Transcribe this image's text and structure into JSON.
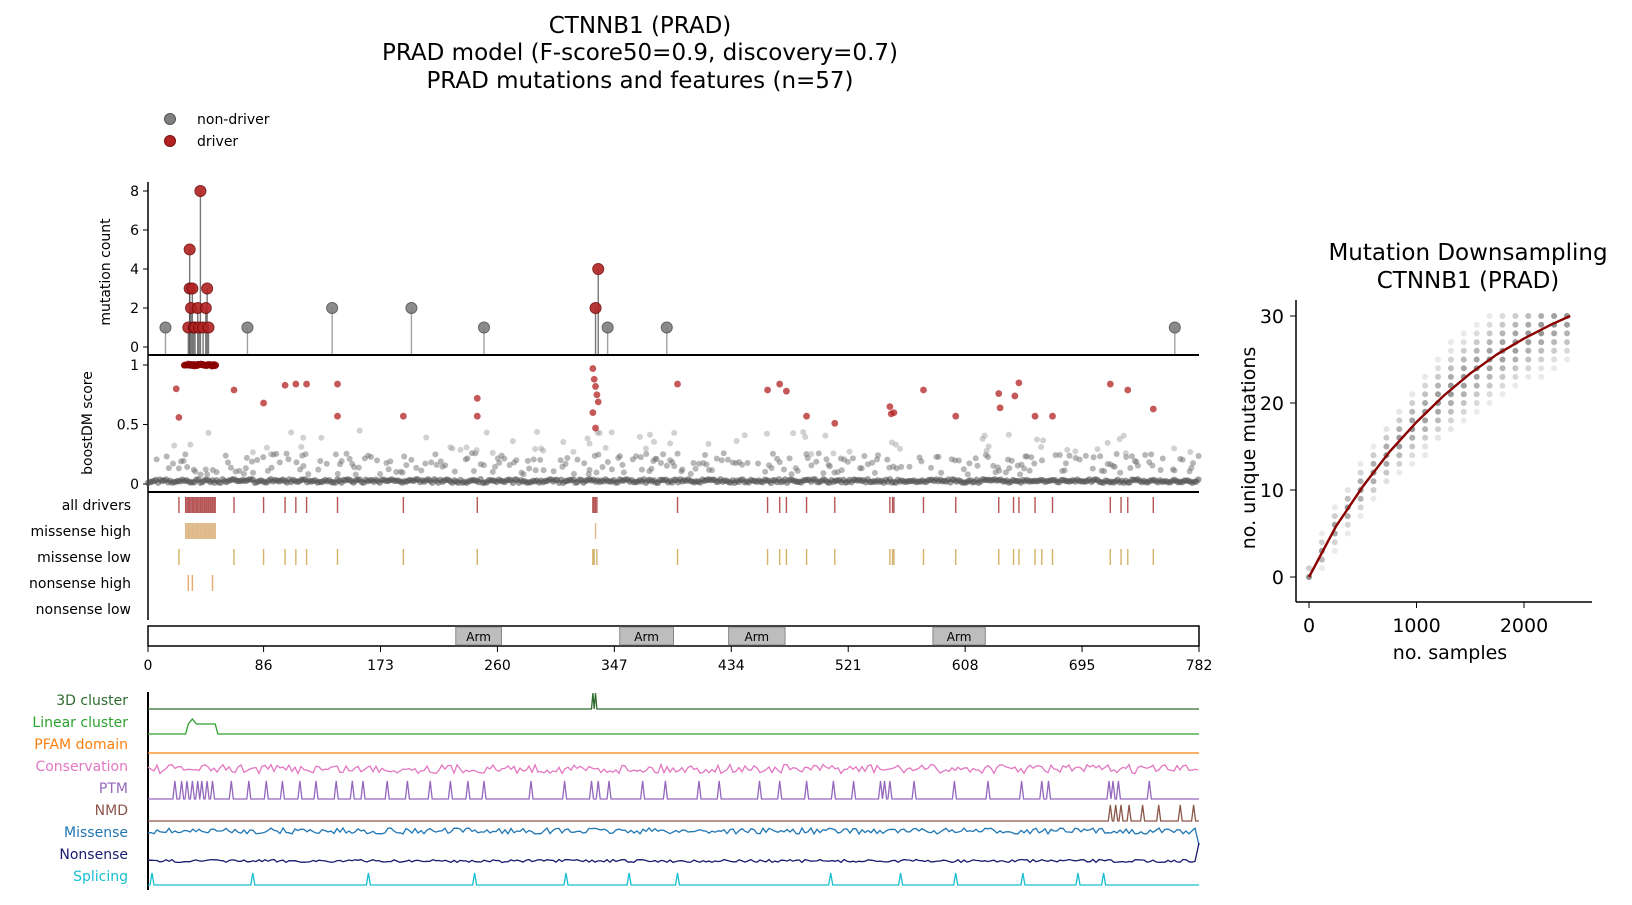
{
  "main_title": {
    "line1": "CTNNB1 (PRAD)",
    "line2": "PRAD model (F-score50=0.9, discovery=0.7)",
    "line3": "PRAD mutations and features (n=57)"
  },
  "colors": {
    "non_driver": "#7f7f7f",
    "driver": "#b22222",
    "missense_track": "#e2b46e",
    "nonsense_track": "#e8b27a",
    "domain_box": "#bdbdbd",
    "fit_line": "#8b0000"
  },
  "chart_data": [
    {
      "type": "scatter",
      "name": "needle",
      "ylabel": "mutation count",
      "ylim": [
        0,
        8
      ],
      "yticks": [
        "0",
        "2",
        "4",
        "6",
        "8"
      ],
      "legend": {
        "placement": "top-left",
        "entries": [
          "non-driver",
          "driver"
        ]
      },
      "points": [
        {
          "x": 13,
          "y": 1,
          "driver": false
        },
        {
          "x": 30,
          "y": 1,
          "driver": true
        },
        {
          "x": 31,
          "y": 5,
          "driver": true
        },
        {
          "x": 31,
          "y": 3,
          "driver": true
        },
        {
          "x": 32,
          "y": 2,
          "driver": true
        },
        {
          "x": 33,
          "y": 3,
          "driver": true
        },
        {
          "x": 34,
          "y": 1,
          "driver": true
        },
        {
          "x": 35,
          "y": 1,
          "driver": true
        },
        {
          "x": 37,
          "y": 2,
          "driver": true
        },
        {
          "x": 38,
          "y": 1,
          "driver": true
        },
        {
          "x": 39,
          "y": 8,
          "driver": true
        },
        {
          "x": 41,
          "y": 1,
          "driver": true
        },
        {
          "x": 43,
          "y": 2,
          "driver": true
        },
        {
          "x": 44,
          "y": 3,
          "driver": true
        },
        {
          "x": 45,
          "y": 1,
          "driver": true
        },
        {
          "x": 74,
          "y": 1,
          "driver": false
        },
        {
          "x": 137,
          "y": 2,
          "driver": false
        },
        {
          "x": 196,
          "y": 2,
          "driver": false
        },
        {
          "x": 250,
          "y": 1,
          "driver": false
        },
        {
          "x": 333,
          "y": 2,
          "driver": true
        },
        {
          "x": 335,
          "y": 4,
          "driver": true
        },
        {
          "x": 342,
          "y": 1,
          "driver": false
        },
        {
          "x": 386,
          "y": 1,
          "driver": false
        },
        {
          "x": 764,
          "y": 1,
          "driver": false
        }
      ]
    },
    {
      "type": "scatter",
      "name": "boostdm-score",
      "ylabel": "boostDM score",
      "ylim": [
        0,
        1
      ],
      "yticks": [
        "0",
        "0.5",
        "1"
      ],
      "drivers": [
        {
          "x": 21,
          "y": 0.8
        },
        {
          "x": 23,
          "y": 0.56
        },
        {
          "x": 64,
          "y": 0.79
        },
        {
          "x": 86,
          "y": 0.68
        },
        {
          "x": 102,
          "y": 0.83
        },
        {
          "x": 110,
          "y": 0.84
        },
        {
          "x": 118,
          "y": 0.84
        },
        {
          "x": 141,
          "y": 0.84
        },
        {
          "x": 141,
          "y": 0.57
        },
        {
          "x": 190,
          "y": 0.57
        },
        {
          "x": 245,
          "y": 0.72
        },
        {
          "x": 245,
          "y": 0.57
        },
        {
          "x": 331,
          "y": 0.97
        },
        {
          "x": 332,
          "y": 0.88
        },
        {
          "x": 333,
          "y": 0.82
        },
        {
          "x": 334,
          "y": 0.75
        },
        {
          "x": 335,
          "y": 0.69
        },
        {
          "x": 331,
          "y": 0.6
        },
        {
          "x": 333,
          "y": 0.47
        },
        {
          "x": 394,
          "y": 0.84
        },
        {
          "x": 461,
          "y": 0.79
        },
        {
          "x": 470,
          "y": 0.84
        },
        {
          "x": 475,
          "y": 0.78
        },
        {
          "x": 490,
          "y": 0.57
        },
        {
          "x": 511,
          "y": 0.51
        },
        {
          "x": 552,
          "y": 0.65
        },
        {
          "x": 553,
          "y": 0.59
        },
        {
          "x": 555,
          "y": 0.6
        },
        {
          "x": 577,
          "y": 0.79
        },
        {
          "x": 601,
          "y": 0.57
        },
        {
          "x": 633,
          "y": 0.76
        },
        {
          "x": 634,
          "y": 0.64
        },
        {
          "x": 648,
          "y": 0.85
        },
        {
          "x": 645,
          "y": 0.74
        },
        {
          "x": 660,
          "y": 0.57
        },
        {
          "x": 673,
          "y": 0.57
        },
        {
          "x": 716,
          "y": 0.84
        },
        {
          "x": 729,
          "y": 0.79
        },
        {
          "x": 748,
          "y": 0.63
        }
      ],
      "driver_band": {
        "x_start": 27,
        "x_end": 51,
        "y": 1.0
      },
      "non_driver_base": [
        {
          "x": 0,
          "y": 0.02
        },
        {
          "x": 782,
          "y": 0.02
        }
      ],
      "non_driver_note": "dense background of non-driver scores between 0 and 0.45"
    },
    {
      "type": "table",
      "name": "consequence-tracks",
      "rows": [
        {
          "label": "all drivers",
          "positions": [
            23,
            28,
            29,
            30,
            31,
            32,
            33,
            34,
            35,
            36,
            37,
            38,
            39,
            40,
            41,
            42,
            43,
            44,
            45,
            46,
            47,
            48,
            49,
            50,
            64,
            86,
            102,
            110,
            118,
            141,
            190,
            245,
            331,
            332,
            333,
            334,
            394,
            461,
            470,
            475,
            490,
            511,
            552,
            554,
            555,
            577,
            601,
            633,
            644,
            648,
            660,
            673,
            716,
            724,
            729,
            748
          ]
        },
        {
          "label": "missense high",
          "positions": [
            28,
            29,
            30,
            31,
            32,
            33,
            34,
            35,
            36,
            37,
            38,
            39,
            40,
            41,
            42,
            43,
            44,
            45,
            46,
            47,
            48,
            49,
            50,
            333
          ]
        },
        {
          "label": "missense low",
          "positions": [
            23,
            64,
            86,
            102,
            110,
            118,
            141,
            190,
            245,
            331,
            332,
            334,
            394,
            461,
            470,
            475,
            490,
            511,
            552,
            554,
            555,
            577,
            601,
            633,
            644,
            648,
            660,
            665,
            673,
            716,
            724,
            729,
            748
          ]
        },
        {
          "label": "nonsense high",
          "positions": [
            30,
            33,
            48
          ]
        },
        {
          "label": "nonsense low",
          "positions": []
        }
      ]
    },
    {
      "type": "bar",
      "name": "domains",
      "domains": [
        {
          "label": "Arm",
          "start": 229,
          "end": 263
        },
        {
          "label": "Arm",
          "start": 351,
          "end": 391
        },
        {
          "label": "Arm",
          "start": 432,
          "end": 474
        },
        {
          "label": "Arm",
          "start": 584,
          "end": 623
        }
      ],
      "xlim": [
        0,
        782
      ],
      "xticks": [
        "0",
        "86",
        "173",
        "260",
        "347",
        "434",
        "521",
        "608",
        "695",
        "782"
      ]
    },
    {
      "type": "line",
      "name": "feature-tracks",
      "series": [
        {
          "name": "3D cluster",
          "color": "#2e6b2e"
        },
        {
          "name": "Linear cluster",
          "color": "#2ca02c"
        },
        {
          "name": "PFAM domain",
          "color": "#ff7f0e"
        },
        {
          "name": "Conservation",
          "color": "#e377c2"
        },
        {
          "name": "PTM",
          "color": "#9467bd"
        },
        {
          "name": "NMD",
          "color": "#8c564b"
        },
        {
          "name": "Missense",
          "color": "#1f77b4"
        },
        {
          "name": "Nonsense",
          "color": "#1a1a6e"
        },
        {
          "name": "Splicing",
          "color": "#17becf"
        }
      ]
    },
    {
      "type": "scatter",
      "name": "downsampling",
      "title_line1": "Mutation Downsampling",
      "title_line2": "CTNNB1 (PRAD)",
      "xlabel": "no. samples",
      "ylabel": "no. unique mutations",
      "xlim": [
        -120,
        2650
      ],
      "ylim": [
        -1.5,
        31.5
      ],
      "xticks": [
        "0",
        "1000",
        "2000"
      ],
      "yticks": [
        "0",
        "10",
        "20",
        "30"
      ],
      "fit": {
        "x": [
          0,
          250,
          500,
          750,
          1000,
          1250,
          1500,
          1750,
          2000,
          2250,
          2430
        ],
        "y": [
          0,
          5.8,
          10.4,
          14.4,
          17.8,
          20.8,
          23.4,
          25.6,
          27.4,
          29.0,
          30.0
        ]
      }
    }
  ]
}
